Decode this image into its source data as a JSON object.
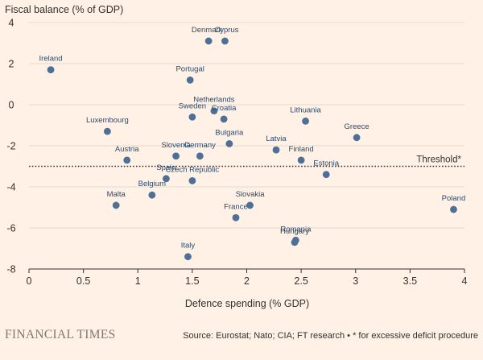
{
  "chart_data": {
    "type": "scatter",
    "title": "",
    "ylabel": "Fiscal balance (% of GDP)",
    "xlabel": "Defence spending (% GDP)",
    "xlim": [
      0,
      4
    ],
    "ylim": [
      -8,
      4
    ],
    "xticks": [
      0,
      0.5,
      1,
      1.5,
      2,
      2.5,
      3,
      3.5,
      4
    ],
    "xtick_labels": [
      "0",
      "0.5",
      "1",
      "1.5",
      "2",
      "2.5",
      "3",
      "3.5",
      "4"
    ],
    "yticks": [
      4,
      2,
      0,
      -2,
      -4,
      -6,
      -8
    ],
    "ytick_labels": [
      "4",
      "2",
      "0",
      "-2",
      "-4",
      "-6",
      "-8"
    ],
    "grid": "horizontal",
    "threshold": {
      "value": -3,
      "label": "Threshold*"
    },
    "points": [
      {
        "label": "Ireland",
        "x": 0.2,
        "y": 1.7
      },
      {
        "label": "Denmark",
        "x": 1.65,
        "y": 3.1
      },
      {
        "label": "Cyprus",
        "x": 1.8,
        "y": 3.1
      },
      {
        "label": "Portugal",
        "x": 1.48,
        "y": 1.2
      },
      {
        "label": "Netherlands",
        "x": 1.7,
        "y": -0.3
      },
      {
        "label": "Sweden",
        "x": 1.5,
        "y": -0.6
      },
      {
        "label": "Croatia",
        "x": 1.79,
        "y": -0.7
      },
      {
        "label": "Lithuania",
        "x": 2.54,
        "y": -0.8
      },
      {
        "label": "Luxembourg",
        "x": 0.72,
        "y": -1.3
      },
      {
        "label": "Greece",
        "x": 3.01,
        "y": -1.6
      },
      {
        "label": "Bulgaria",
        "x": 1.84,
        "y": -1.9
      },
      {
        "label": "Latvia",
        "x": 2.27,
        "y": -2.2
      },
      {
        "label": "Austria",
        "x": 0.9,
        "y": -2.7
      },
      {
        "label": "Slovenia",
        "x": 1.35,
        "y": -2.5
      },
      {
        "label": "Germany",
        "x": 1.57,
        "y": -2.5
      },
      {
        "label": "Finland",
        "x": 2.5,
        "y": -2.7
      },
      {
        "label": "Estonia",
        "x": 2.73,
        "y": -3.4
      },
      {
        "label": "Spain",
        "x": 1.26,
        "y": -3.6
      },
      {
        "label": "Czech Republic",
        "x": 1.5,
        "y": -3.7
      },
      {
        "label": "Belgium",
        "x": 1.13,
        "y": -4.4
      },
      {
        "label": "Malta",
        "x": 0.8,
        "y": -4.9
      },
      {
        "label": "Slovakia",
        "x": 2.03,
        "y": -4.9
      },
      {
        "label": "France",
        "x": 1.9,
        "y": -5.5
      },
      {
        "label": "Poland",
        "x": 3.9,
        "y": -5.1
      },
      {
        "label": "Romania",
        "x": 2.45,
        "y": -6.6
      },
      {
        "label": "Hungary",
        "x": 2.44,
        "y": -6.7
      },
      {
        "label": "Italy",
        "x": 1.46,
        "y": -7.4
      }
    ]
  },
  "footer": {
    "brand": "FINANCIAL TIMES",
    "source": "Source: Eurostat; Nato; CIA; FT research • * for excessive deficit procedure"
  },
  "colors": {
    "background": "#fff1e5",
    "point": "#4e6f96",
    "point_label": "#2a4a6e",
    "grid": "#e6d9ce",
    "axis": "#33302e",
    "text": "#33302e",
    "brand": "#807973"
  }
}
